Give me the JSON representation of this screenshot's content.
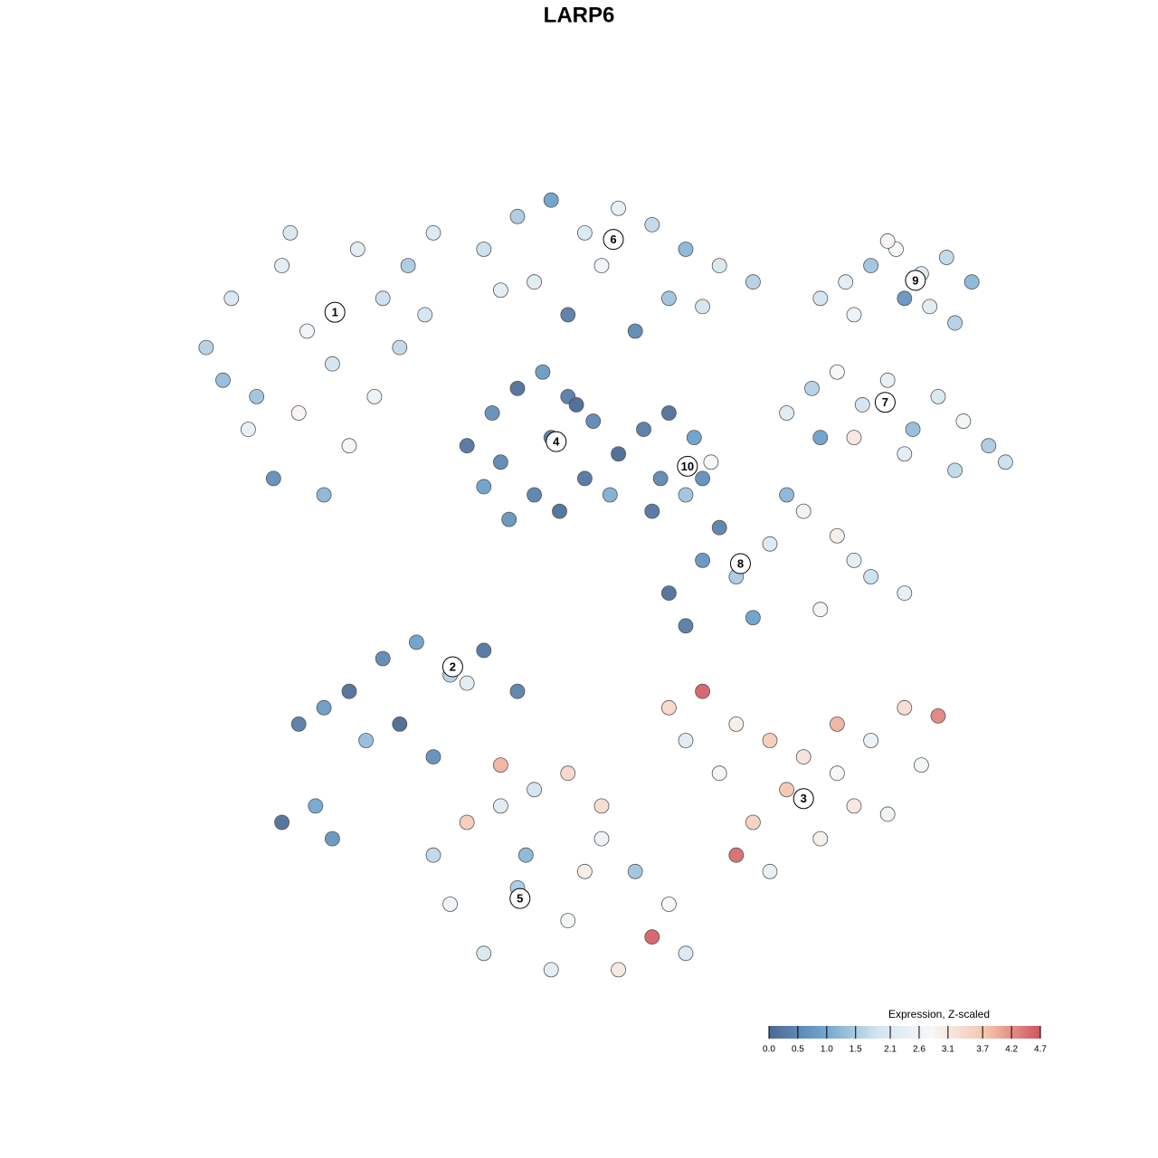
{
  "chart_data": {
    "type": "scatter",
    "title": "LARP6",
    "colorbar_title": "Expression, Z-scaled",
    "xlim": [
      0,
      100
    ],
    "ylim": [
      0,
      100
    ],
    "clim": [
      0,
      4.7
    ],
    "colormap": [
      "#4a6a94",
      "#6fa3cc",
      "#d3e5f0",
      "#f7f7f7",
      "#f4c4ab",
      "#d0555f"
    ],
    "colorbar_ticks": [
      {
        "value": 0,
        "label": "0.0"
      },
      0.5,
      {
        "value": 1,
        "label": "1.0"
      },
      1.5,
      2.1,
      2.6,
      3.1,
      3.7,
      4.2,
      4.7
    ],
    "x": [
      3,
      6,
      9,
      12,
      15,
      18,
      21,
      24,
      27,
      30,
      8,
      14,
      20,
      26,
      11,
      17,
      23,
      29,
      5,
      13,
      36,
      40,
      44,
      48,
      52,
      56,
      60,
      64,
      68,
      42,
      50,
      58,
      46,
      54,
      62,
      38,
      76,
      79,
      82,
      85,
      88,
      91,
      94,
      80,
      86,
      92,
      84,
      89,
      72,
      75,
      78,
      81,
      84,
      87,
      90,
      93,
      96,
      98,
      80,
      86,
      92,
      76,
      34,
      37,
      40,
      43,
      46,
      49,
      52,
      36,
      42,
      48,
      39,
      45,
      51,
      44,
      38,
      47,
      55,
      58,
      61,
      63,
      57,
      60,
      56,
      62,
      58,
      62,
      66,
      70,
      74,
      78,
      82,
      86,
      68,
      76,
      72,
      64,
      60,
      80,
      14,
      17,
      20,
      24,
      28,
      32,
      36,
      40,
      22,
      26,
      30,
      34,
      12,
      18,
      16,
      58,
      62,
      66,
      70,
      74,
      78,
      82,
      86,
      90,
      64,
      72,
      80,
      88,
      68,
      76,
      84,
      60,
      70,
      78,
      66,
      30,
      34,
      38,
      42,
      46,
      50,
      54,
      58,
      32,
      40,
      48,
      56,
      36,
      44,
      52,
      60,
      38,
      46,
      41,
      50
    ],
    "y": [
      78,
      84,
      72,
      88,
      80,
      76,
      90,
      84,
      88,
      92,
      68,
      70,
      66,
      78,
      62,
      60,
      72,
      82,
      74,
      92,
      90,
      94,
      96,
      92,
      95,
      93,
      90,
      88,
      86,
      86,
      88,
      84,
      82,
      80,
      83,
      85,
      84,
      86,
      88,
      90,
      87,
      89,
      86,
      82,
      84,
      81,
      91,
      83,
      70,
      73,
      75,
      71,
      74,
      68,
      72,
      69,
      66,
      64,
      67,
      65,
      63,
      67,
      66,
      70,
      73,
      75,
      72,
      69,
      65,
      61,
      60,
      62,
      57,
      58,
      60,
      67,
      64,
      71,
      68,
      70,
      67,
      64,
      62,
      60,
      58,
      62,
      48,
      52,
      50,
      54,
      58,
      55,
      50,
      48,
      45,
      46,
      60,
      56,
      44,
      52,
      32,
      34,
      36,
      40,
      42,
      38,
      41,
      36,
      30,
      32,
      28,
      37,
      20,
      18,
      22,
      34,
      36,
      32,
      30,
      28,
      26,
      30,
      34,
      33,
      26,
      24,
      22,
      27,
      20,
      18,
      21,
      30,
      14,
      32,
      16,
      16,
      20,
      22,
      24,
      26,
      18,
      14,
      10,
      10,
      12,
      14,
      6,
      4,
      2,
      2,
      4,
      27,
      8,
      16,
      22
    ],
    "values": [
      1.6,
      2.0,
      1.4,
      2.3,
      2.6,
      1.9,
      2.2,
      1.8,
      1.5,
      2.1,
      2.4,
      2.9,
      2.7,
      1.7,
      0.6,
      1.2,
      2.5,
      1.9,
      1.3,
      2.0,
      1.8,
      1.5,
      0.9,
      2.1,
      2.4,
      1.7,
      1.2,
      2.0,
      1.6,
      2.2,
      2.6,
      1.4,
      0.3,
      0.5,
      1.9,
      2.3,
      1.9,
      2.3,
      1.4,
      2.8,
      2.1,
      1.7,
      1.2,
      2.5,
      0.7,
      1.6,
      2.9,
      2.2,
      2.2,
      1.6,
      2.8,
      1.9,
      2.4,
      1.3,
      2.0,
      2.7,
      1.5,
      1.8,
      3.1,
      2.3,
      1.7,
      0.9,
      0.2,
      0.6,
      0.1,
      0.8,
      0.3,
      0.5,
      0.0,
      0.9,
      0.4,
      0.2,
      0.7,
      0.1,
      1.1,
      0.3,
      0.5,
      0.0,
      0.3,
      0.1,
      0.9,
      2.8,
      0.5,
      1.4,
      0.2,
      0.6,
      0.1,
      0.7,
      1.5,
      2.1,
      2.6,
      3.0,
      1.8,
      2.4,
      0.9,
      2.9,
      1.2,
      0.4,
      0.3,
      2.3,
      0.3,
      0.8,
      0.1,
      0.5,
      0.9,
      1.6,
      0.2,
      0.4,
      1.3,
      0.0,
      0.6,
      2.2,
      0.1,
      0.7,
      1.0,
      3.4,
      4.6,
      3.0,
      3.6,
      3.2,
      2.8,
      2.5,
      3.3,
      4.3,
      2.9,
      3.7,
      3.1,
      2.7,
      3.5,
      3.0,
      2.6,
      2.2,
      2.4,
      3.9,
      4.5,
      1.7,
      3.6,
      2.2,
      1.9,
      3.4,
      2.5,
      1.4,
      2.8,
      2.6,
      1.5,
      3.0,
      4.6,
      2.0,
      2.3,
      3.1,
      2.1,
      3.9,
      2.7,
      1.2,
      3.3
    ],
    "cluster_labels": {
      "labels": [
        "1",
        "6",
        "9",
        "7",
        "4",
        "10",
        "8",
        "2",
        "3",
        "5"
      ],
      "x": [
        18.3,
        51.4,
        87.3,
        83.7,
        44.6,
        60.2,
        66.5,
        32.3,
        74.0,
        40.3
      ],
      "y": [
        82.3,
        91.2,
        86.2,
        71.3,
        66.5,
        63.5,
        51.6,
        39.0,
        22.9,
        10.7
      ]
    }
  }
}
